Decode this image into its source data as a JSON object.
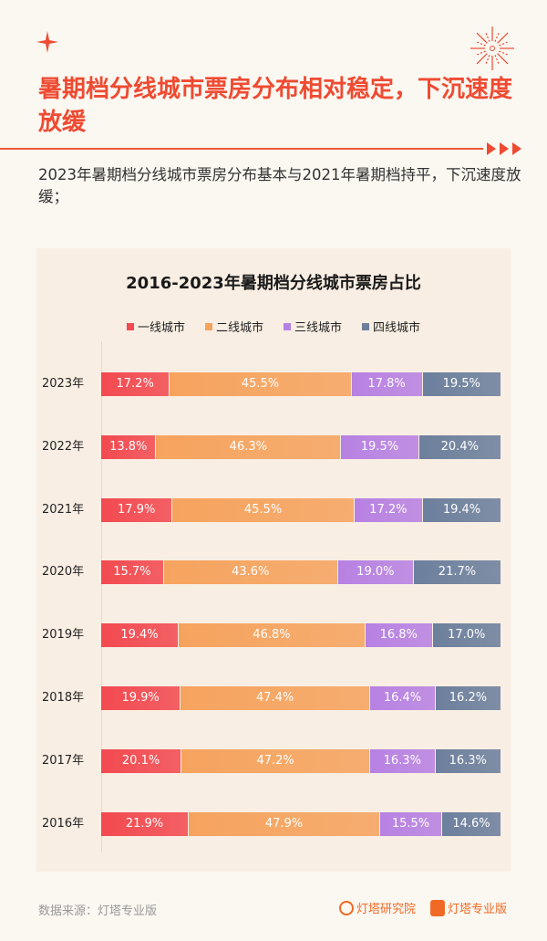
{
  "header": {
    "title": "暑期档分线城市票房分布相对稳定，下沉速度放缓",
    "subtitle": "2023年暑期档分线城市票房分布基本与2021年暑期档持平，下沉速度放缓；"
  },
  "footer": {
    "source": "数据来源：灯塔专业版",
    "logo1": "灯塔研究院",
    "logo2": "灯塔专业版"
  },
  "colors": {
    "accent": "#ee4b32",
    "tier1": "#f24a50",
    "tier2": "#f6a35e",
    "tier3": "#b781e2",
    "tier4": "#6c7f9c"
  },
  "chart_data": {
    "type": "bar",
    "orientation": "horizontal",
    "stacked": true,
    "title": "2016-2023年暑期档分线城市票房占比",
    "legend_position": "top",
    "categories": [
      "2023年",
      "2022年",
      "2021年",
      "2020年",
      "2019年",
      "2018年",
      "2017年",
      "2016年"
    ],
    "series": [
      {
        "name": "一线城市",
        "color": "#f24a50",
        "values": [
          17.2,
          13.8,
          17.9,
          15.7,
          19.4,
          19.9,
          20.1,
          21.9
        ]
      },
      {
        "name": "二线城市",
        "color": "#f6a35e",
        "values": [
          45.5,
          46.3,
          45.5,
          43.6,
          46.8,
          47.4,
          47.2,
          47.9
        ]
      },
      {
        "name": "三线城市",
        "color": "#b781e2",
        "values": [
          17.8,
          19.5,
          17.2,
          19.0,
          16.8,
          16.4,
          16.3,
          15.5
        ]
      },
      {
        "name": "四线城市",
        "color": "#6c7f9c",
        "values": [
          19.5,
          20.4,
          19.4,
          21.7,
          17.0,
          16.2,
          16.3,
          14.6
        ]
      }
    ],
    "value_suffix": "%"
  }
}
